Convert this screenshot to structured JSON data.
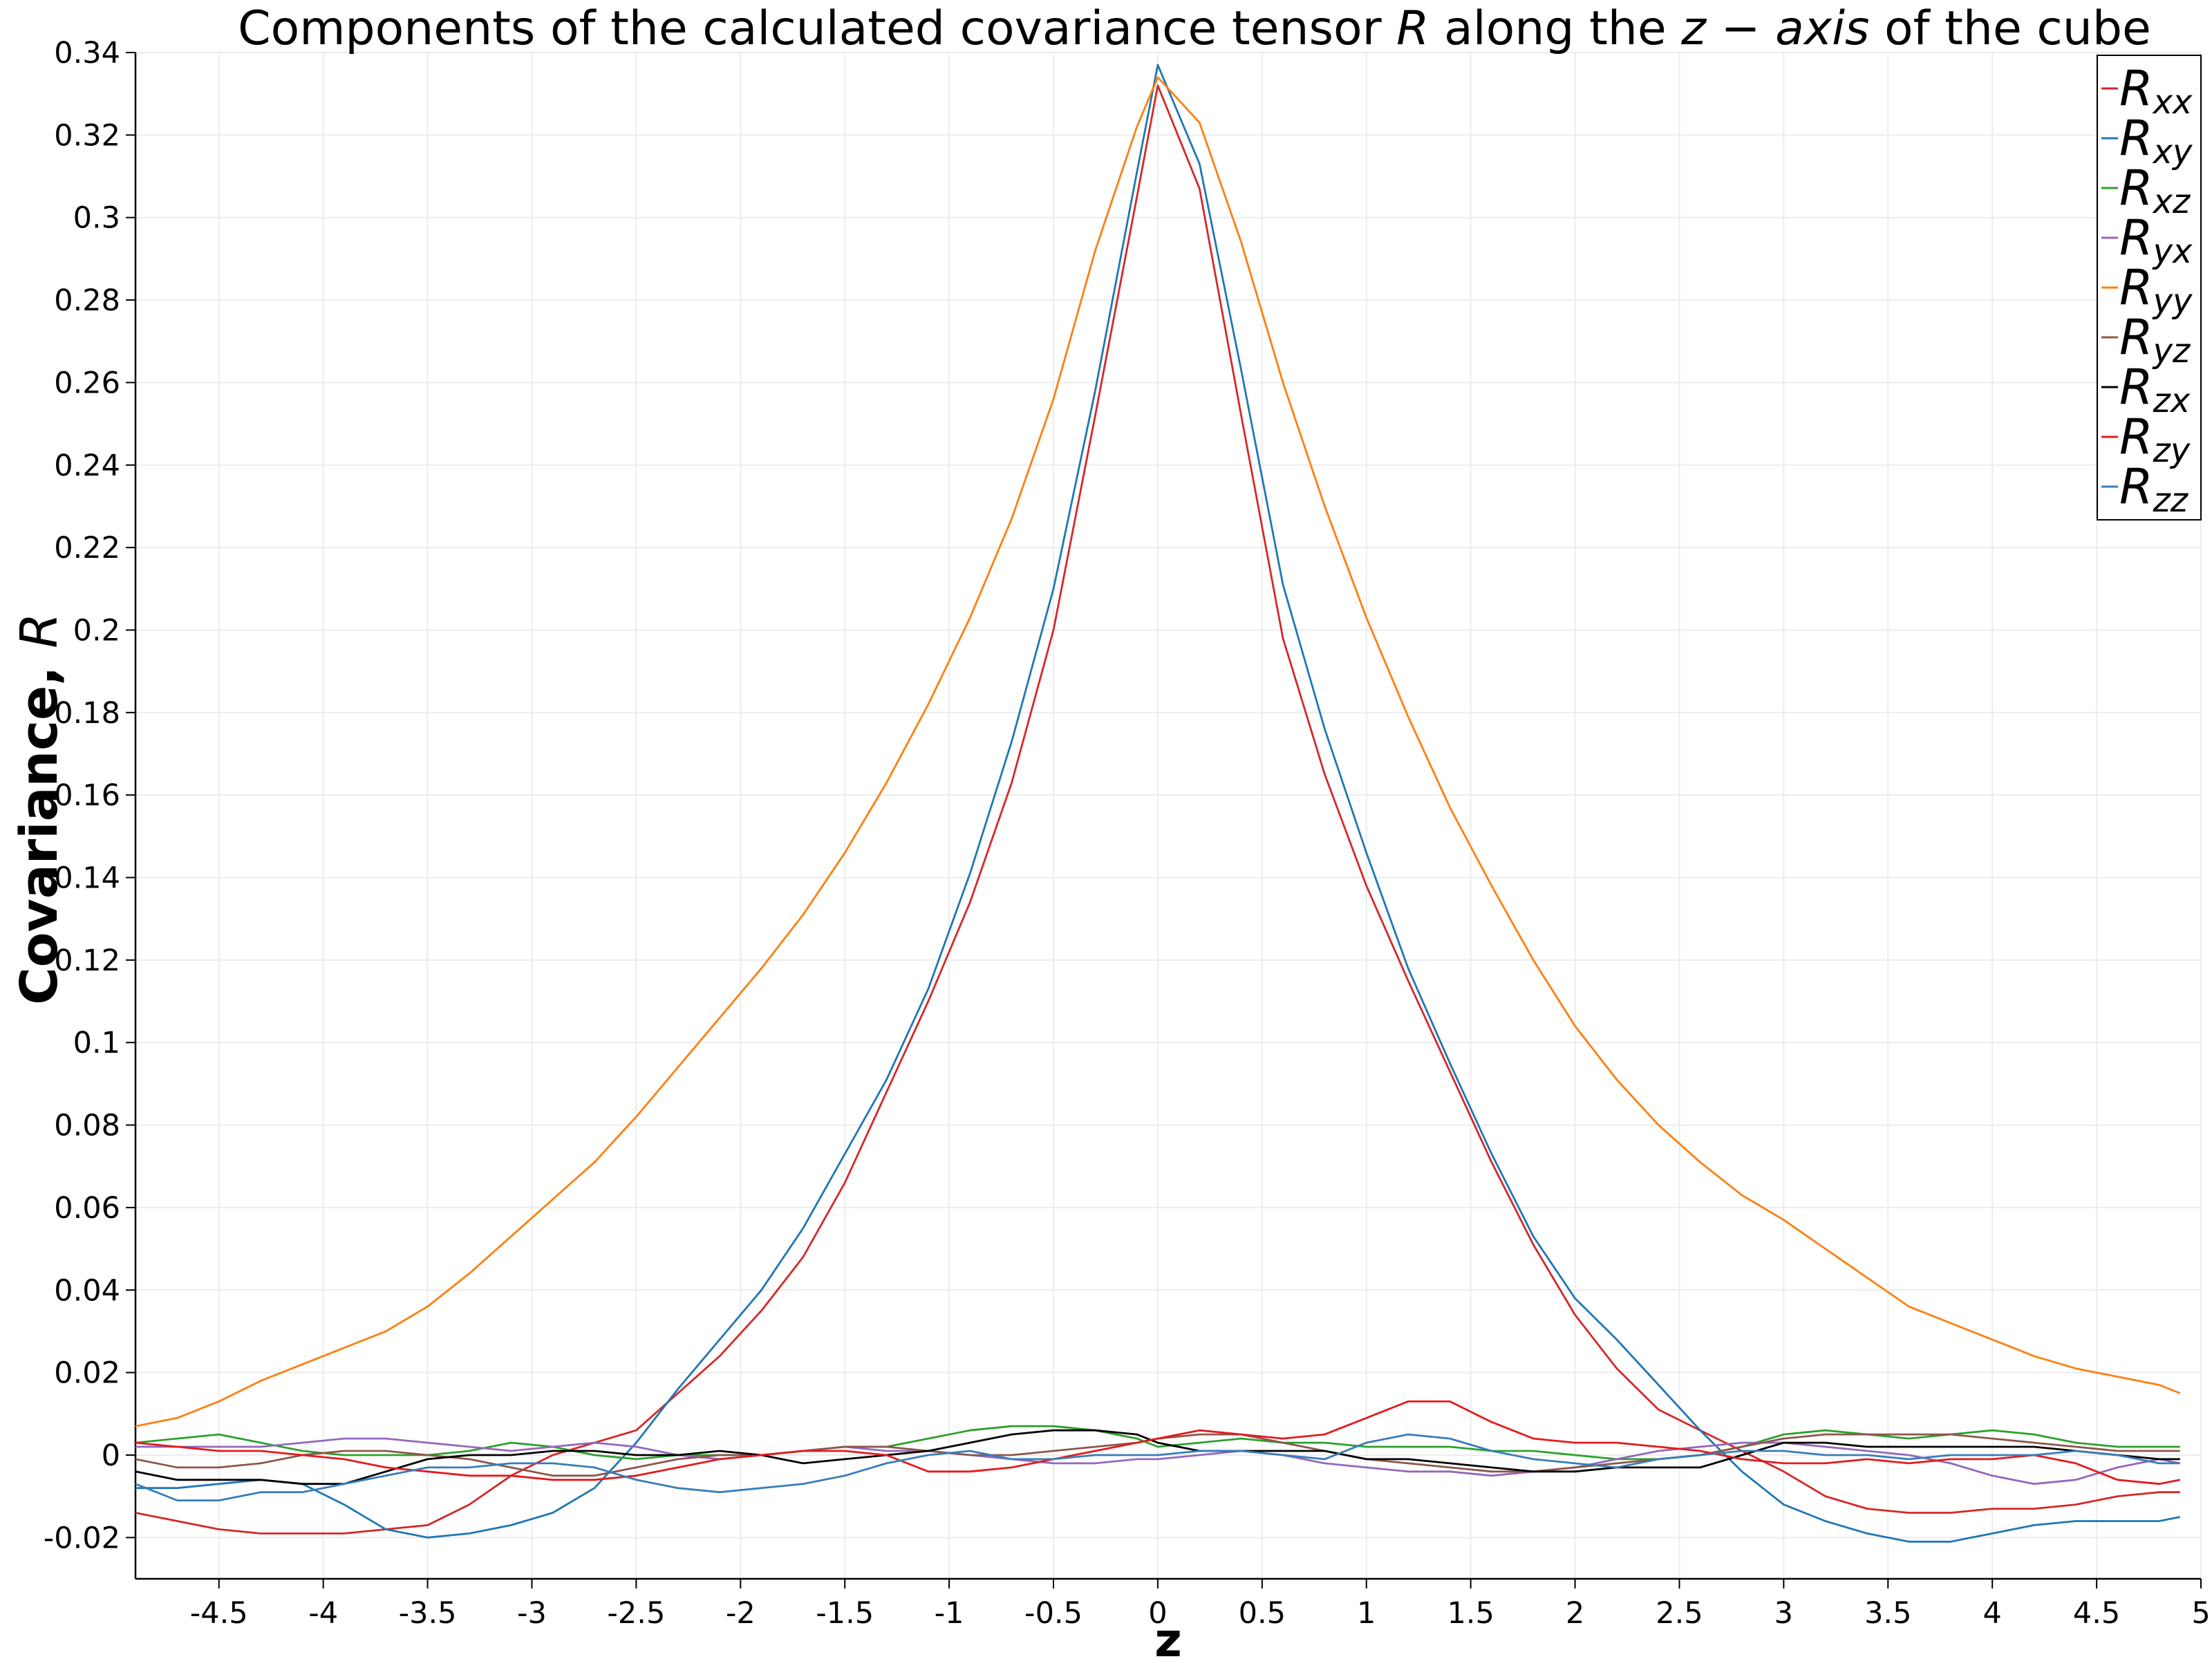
{
  "chart_data": {
    "type": "line",
    "title": "Components of the calculated covariance tensor",
    "title_symbol": "R",
    "title_mid": " along the ",
    "title_axis": "z − axis",
    "title_end": " of the cube",
    "xlabel": "z",
    "ylabel": "Covariance, ",
    "ylabel_symbol": "R",
    "xlim": [
      -4.9,
      5.0
    ],
    "ylim": [
      -0.03,
      0.34
    ],
    "xticks": [
      "-4.5",
      "-4",
      "-3.5",
      "-3",
      "-2.5",
      "-2",
      "-1.5",
      "-1",
      "-0.5",
      "0",
      "0.5",
      "1",
      "1.5",
      "2",
      "2.5",
      "3",
      "3.5",
      "4",
      "4.5",
      "5"
    ],
    "yticks": [
      "-0.02",
      "0",
      "0.02",
      "0.04",
      "0.06",
      "0.08",
      "0.1",
      "0.12",
      "0.14",
      "0.16",
      "0.18",
      "0.2",
      "0.22",
      "0.24",
      "0.26",
      "0.28",
      "0.3",
      "0.32",
      "0.34"
    ],
    "grid": true,
    "legend_position": "top-right",
    "x": [
      -4.9,
      -4.7,
      -4.5,
      -4.3,
      -4.1,
      -3.9,
      -3.7,
      -3.5,
      -3.3,
      -3.1,
      -2.9,
      -2.7,
      -2.5,
      -2.3,
      -2.1,
      -1.9,
      -1.7,
      -1.5,
      -1.3,
      -1.1,
      -0.9,
      -0.7,
      -0.5,
      -0.3,
      -0.1,
      0.0,
      0.2,
      0.4,
      0.6,
      0.8,
      1.0,
      1.2,
      1.4,
      1.6,
      1.8,
      2.0,
      2.2,
      2.4,
      2.6,
      2.8,
      3.0,
      3.2,
      3.4,
      3.6,
      3.8,
      4.0,
      4.2,
      4.4,
      4.6,
      4.8,
      4.9
    ],
    "series": [
      {
        "name": "xx",
        "color": "#d62728",
        "values": [
          -0.014,
          -0.016,
          -0.018,
          -0.019,
          -0.019,
          -0.019,
          -0.018,
          -0.017,
          -0.012,
          -0.005,
          0.0,
          0.003,
          0.006,
          0.015,
          0.024,
          0.035,
          0.048,
          0.066,
          0.088,
          0.11,
          0.134,
          0.163,
          0.2,
          0.252,
          0.305,
          0.332,
          0.307,
          0.252,
          0.198,
          0.165,
          0.138,
          0.115,
          0.093,
          0.071,
          0.051,
          0.034,
          0.021,
          0.011,
          0.006,
          0.001,
          -0.004,
          -0.01,
          -0.013,
          -0.014,
          -0.014,
          -0.013,
          -0.013,
          -0.012,
          -0.01,
          -0.009,
          -0.009
        ]
      },
      {
        "name": "xy",
        "color": "#1f77b4",
        "values": [
          -0.008,
          -0.008,
          -0.007,
          -0.006,
          -0.007,
          -0.012,
          -0.018,
          -0.02,
          -0.019,
          -0.017,
          -0.014,
          -0.008,
          0.003,
          0.016,
          0.028,
          0.04,
          0.055,
          0.073,
          0.091,
          0.113,
          0.141,
          0.173,
          0.21,
          0.258,
          0.311,
          0.337,
          0.313,
          0.263,
          0.211,
          0.176,
          0.146,
          0.118,
          0.095,
          0.073,
          0.053,
          0.038,
          0.028,
          0.017,
          0.006,
          -0.004,
          -0.012,
          -0.016,
          -0.019,
          -0.021,
          -0.021,
          -0.019,
          -0.017,
          -0.016,
          -0.016,
          -0.016,
          -0.015
        ]
      },
      {
        "name": "xz",
        "color": "#2ca02c",
        "values": [
          0.003,
          0.004,
          0.005,
          0.003,
          0.001,
          0.0,
          0.0,
          0.0,
          0.001,
          0.003,
          0.002,
          0.0,
          -0.001,
          0.0,
          0.0,
          0.0,
          0.001,
          0.002,
          0.002,
          0.004,
          0.006,
          0.007,
          0.007,
          0.006,
          0.004,
          0.002,
          0.003,
          0.004,
          0.003,
          0.003,
          0.002,
          0.002,
          0.002,
          0.001,
          0.001,
          0.0,
          -0.001,
          -0.001,
          0.0,
          0.002,
          0.005,
          0.006,
          0.005,
          0.004,
          0.005,
          0.006,
          0.005,
          0.003,
          0.002,
          0.002,
          0.002
        ]
      },
      {
        "name": "yx",
        "color": "#9467bd",
        "values": [
          0.002,
          0.002,
          0.002,
          0.002,
          0.003,
          0.004,
          0.004,
          0.003,
          0.002,
          0.001,
          0.002,
          0.003,
          0.002,
          0.0,
          -0.001,
          0.0,
          0.001,
          0.002,
          0.001,
          0.001,
          0.0,
          -0.001,
          -0.002,
          -0.002,
          -0.001,
          -0.001,
          0.0,
          0.001,
          0.0,
          -0.002,
          -0.003,
          -0.004,
          -0.004,
          -0.005,
          -0.004,
          -0.003,
          -0.001,
          0.001,
          0.002,
          0.003,
          0.003,
          0.002,
          0.001,
          0.0,
          -0.002,
          -0.005,
          -0.007,
          -0.006,
          -0.003,
          -0.001,
          -0.002
        ]
      },
      {
        "name": "yy",
        "color": "#ff7f0e",
        "values": [
          0.007,
          0.009,
          0.013,
          0.018,
          0.022,
          0.026,
          0.03,
          0.036,
          0.044,
          0.053,
          0.062,
          0.071,
          0.082,
          0.094,
          0.106,
          0.118,
          0.131,
          0.146,
          0.163,
          0.182,
          0.203,
          0.227,
          0.256,
          0.292,
          0.322,
          0.334,
          0.323,
          0.294,
          0.26,
          0.23,
          0.203,
          0.179,
          0.157,
          0.138,
          0.12,
          0.104,
          0.091,
          0.08,
          0.071,
          0.063,
          0.057,
          0.05,
          0.043,
          0.036,
          0.032,
          0.028,
          0.024,
          0.021,
          0.019,
          0.017,
          0.015
        ]
      },
      {
        "name": "yz",
        "color": "#8c564b",
        "values": [
          -0.001,
          -0.003,
          -0.003,
          -0.002,
          0.0,
          0.001,
          0.001,
          0.0,
          -0.001,
          -0.003,
          -0.005,
          -0.005,
          -0.003,
          -0.001,
          0.0,
          0.0,
          0.001,
          0.002,
          0.002,
          0.001,
          0.0,
          0.0,
          0.001,
          0.002,
          0.003,
          0.004,
          0.005,
          0.005,
          0.003,
          0.001,
          -0.001,
          -0.002,
          -0.003,
          -0.004,
          -0.004,
          -0.003,
          -0.002,
          -0.001,
          0.0,
          0.002,
          0.004,
          0.005,
          0.005,
          0.005,
          0.005,
          0.004,
          0.003,
          0.002,
          0.001,
          0.001,
          0.001
        ]
      },
      {
        "name": "zx",
        "color": "#000000",
        "values": [
          -0.004,
          -0.006,
          -0.006,
          -0.006,
          -0.007,
          -0.007,
          -0.004,
          -0.001,
          0.0,
          0.0,
          0.001,
          0.001,
          0.0,
          0.0,
          0.001,
          0.0,
          -0.002,
          -0.001,
          0.0,
          0.001,
          0.003,
          0.005,
          0.006,
          0.006,
          0.005,
          0.003,
          0.001,
          0.001,
          0.001,
          0.001,
          -0.001,
          -0.001,
          -0.002,
          -0.003,
          -0.004,
          -0.004,
          -0.003,
          -0.003,
          -0.003,
          0.0,
          0.003,
          0.003,
          0.002,
          0.002,
          0.002,
          0.002,
          0.002,
          0.001,
          0.0,
          -0.001,
          -0.001
        ]
      },
      {
        "name": "zy",
        "color": "#e41a1c",
        "values": [
          0.003,
          0.002,
          0.001,
          0.001,
          0.0,
          -0.001,
          -0.003,
          -0.004,
          -0.005,
          -0.005,
          -0.006,
          -0.006,
          -0.005,
          -0.003,
          -0.001,
          0.0,
          0.001,
          0.001,
          0.0,
          -0.004,
          -0.004,
          -0.003,
          -0.001,
          0.001,
          0.003,
          0.004,
          0.006,
          0.005,
          0.004,
          0.005,
          0.009,
          0.013,
          0.013,
          0.008,
          0.004,
          0.003,
          0.003,
          0.002,
          0.001,
          -0.001,
          -0.002,
          -0.002,
          -0.001,
          -0.002,
          -0.001,
          -0.001,
          0.0,
          -0.002,
          -0.006,
          -0.007,
          -0.006
        ]
      },
      {
        "name": "zz",
        "color": "#377eb8",
        "values": [
          -0.007,
          -0.011,
          -0.011,
          -0.009,
          -0.009,
          -0.007,
          -0.005,
          -0.003,
          -0.003,
          -0.002,
          -0.002,
          -0.003,
          -0.006,
          -0.008,
          -0.009,
          -0.008,
          -0.007,
          -0.005,
          -0.002,
          0.0,
          0.001,
          -0.001,
          -0.001,
          0.0,
          0.0,
          0.0,
          0.001,
          0.001,
          0.0,
          -0.001,
          0.003,
          0.005,
          0.004,
          0.001,
          -0.001,
          -0.002,
          -0.003,
          -0.001,
          0.0,
          0.001,
          0.001,
          0.0,
          0.0,
          -0.001,
          0.0,
          0.0,
          0.0,
          0.001,
          0.0,
          -0.002,
          -0.002
        ]
      }
    ]
  }
}
